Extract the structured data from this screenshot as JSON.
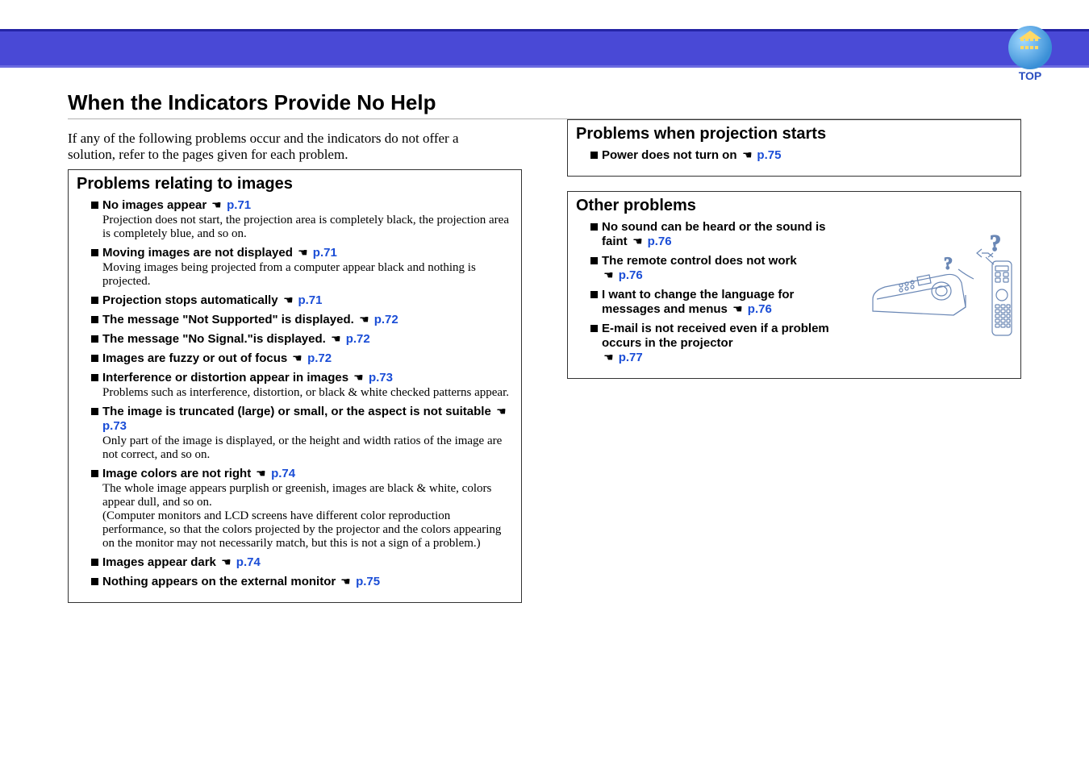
{
  "header": {
    "top_label": "TOP"
  },
  "main_title": "When the Indicators Provide No Help",
  "intro": "If any of the following problems occur and the indicators do not offer a solution, refer to the pages given for each problem.",
  "box_images": {
    "title": "Problems relating to images",
    "items": [
      {
        "heading": "No images appear",
        "page": "p.71",
        "desc": "Projection does not start, the projection area is completely black, the projection area is completely blue, and so on."
      },
      {
        "heading": "Moving images are not displayed",
        "page": "p.71",
        "desc": "Moving images being projected from a computer appear black and nothing is projected."
      },
      {
        "heading": "Projection stops automatically",
        "page": "p.71",
        "desc": ""
      },
      {
        "heading": "The message \"Not Supported\" is displayed.",
        "page": "p.72",
        "desc": ""
      },
      {
        "heading": "The message \"No Signal.\"is displayed.",
        "page": "p.72",
        "desc": ""
      },
      {
        "heading": "Images are fuzzy or out of focus",
        "page": "p.72",
        "desc": ""
      },
      {
        "heading": "Interference or distortion appear in images",
        "page": "p.73",
        "desc": "Problems such as interference, distortion, or black & white checked patterns appear."
      },
      {
        "heading": "The image is truncated (large) or small, or the aspect is not suitable",
        "page": "p.73",
        "desc": "Only part of the image is displayed, or the height and width ratios of the image are not correct, and so on."
      },
      {
        "heading": "Image colors are not right",
        "page": "p.74",
        "desc": "The whole image appears purplish or greenish, images are black & white, colors appear dull, and so on.\n(Computer monitors and LCD screens have different color reproduction performance, so that the colors projected by the projector and the colors appearing on the monitor may not necessarily match, but this is not a sign of a problem.)"
      },
      {
        "heading": "Images appear dark",
        "page": "p.74",
        "desc": ""
      },
      {
        "heading": "Nothing appears on the external monitor",
        "page": "p.75",
        "desc": ""
      }
    ]
  },
  "box_start": {
    "title": "Problems when projection starts",
    "items": [
      {
        "heading": "Power does not turn on",
        "page": "p.75",
        "desc": ""
      }
    ]
  },
  "box_other": {
    "title": "Other problems",
    "items": [
      {
        "heading": "No sound can be heard or the sound is faint",
        "page": "p.76",
        "desc": ""
      },
      {
        "heading": "The remote control does not work",
        "page": "p.76",
        "desc": ""
      },
      {
        "heading": "I want to change the language for messages and menus",
        "page": "p.76",
        "desc": ""
      },
      {
        "heading": "E-mail is not received even if a problem occurs in the projector",
        "page": "p.77",
        "desc": ""
      }
    ]
  }
}
